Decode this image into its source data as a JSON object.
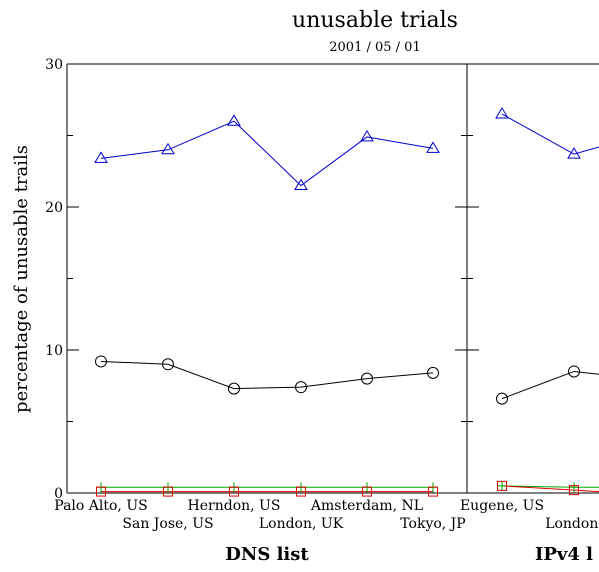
{
  "chart_data": {
    "type": "line",
    "title": "unusable trials",
    "subtitle": "2001 / 05 / 01",
    "ylabel": "percentage of unusable trails",
    "ylim": [
      0,
      30
    ],
    "yticks": [
      0,
      10,
      20,
      30
    ],
    "grid": false,
    "legend": "none",
    "panels": [
      {
        "group_label": "DNS list",
        "categories": [
          "Palo Alto, US",
          "San Jose, US",
          "Herndon, US",
          "London, UK",
          "Amsterdam, NL",
          "Tokyo, JP"
        ],
        "series": [
          {
            "marker": "triangle",
            "color": "#0000cc",
            "values": [
              23.4,
              24.0,
              26.0,
              21.5,
              24.9,
              24.1
            ]
          },
          {
            "marker": "circle",
            "color": "#000000",
            "values": [
              9.2,
              9.0,
              7.3,
              7.4,
              8.0,
              8.4
            ]
          },
          {
            "marker": "plus",
            "color": "#00aa00",
            "values": [
              0.4,
              0.4,
              0.4,
              0.4,
              0.4,
              0.4
            ]
          },
          {
            "marker": "square",
            "color": "#dd0000",
            "values": [
              0.1,
              0.1,
              0.1,
              0.1,
              0.1,
              0.1
            ]
          }
        ]
      },
      {
        "group_label": "IPv4 l",
        "categories": [
          "Eugene, US",
          "London,"
        ],
        "series": [
          {
            "marker": "triangle",
            "color": "#0000cc",
            "values": [
              26.5,
              23.7
            ],
            "tail": 24.2
          },
          {
            "marker": "circle",
            "color": "#000000",
            "values": [
              6.6,
              8.5
            ],
            "tail": 8.3
          },
          {
            "marker": "plus",
            "color": "#00aa00",
            "values": [
              0.5,
              0.4
            ],
            "tail": 0.4
          },
          {
            "marker": "square",
            "color": "#dd0000",
            "values": [
              0.5,
              0.2
            ],
            "tail": 0.1
          }
        ]
      }
    ]
  }
}
